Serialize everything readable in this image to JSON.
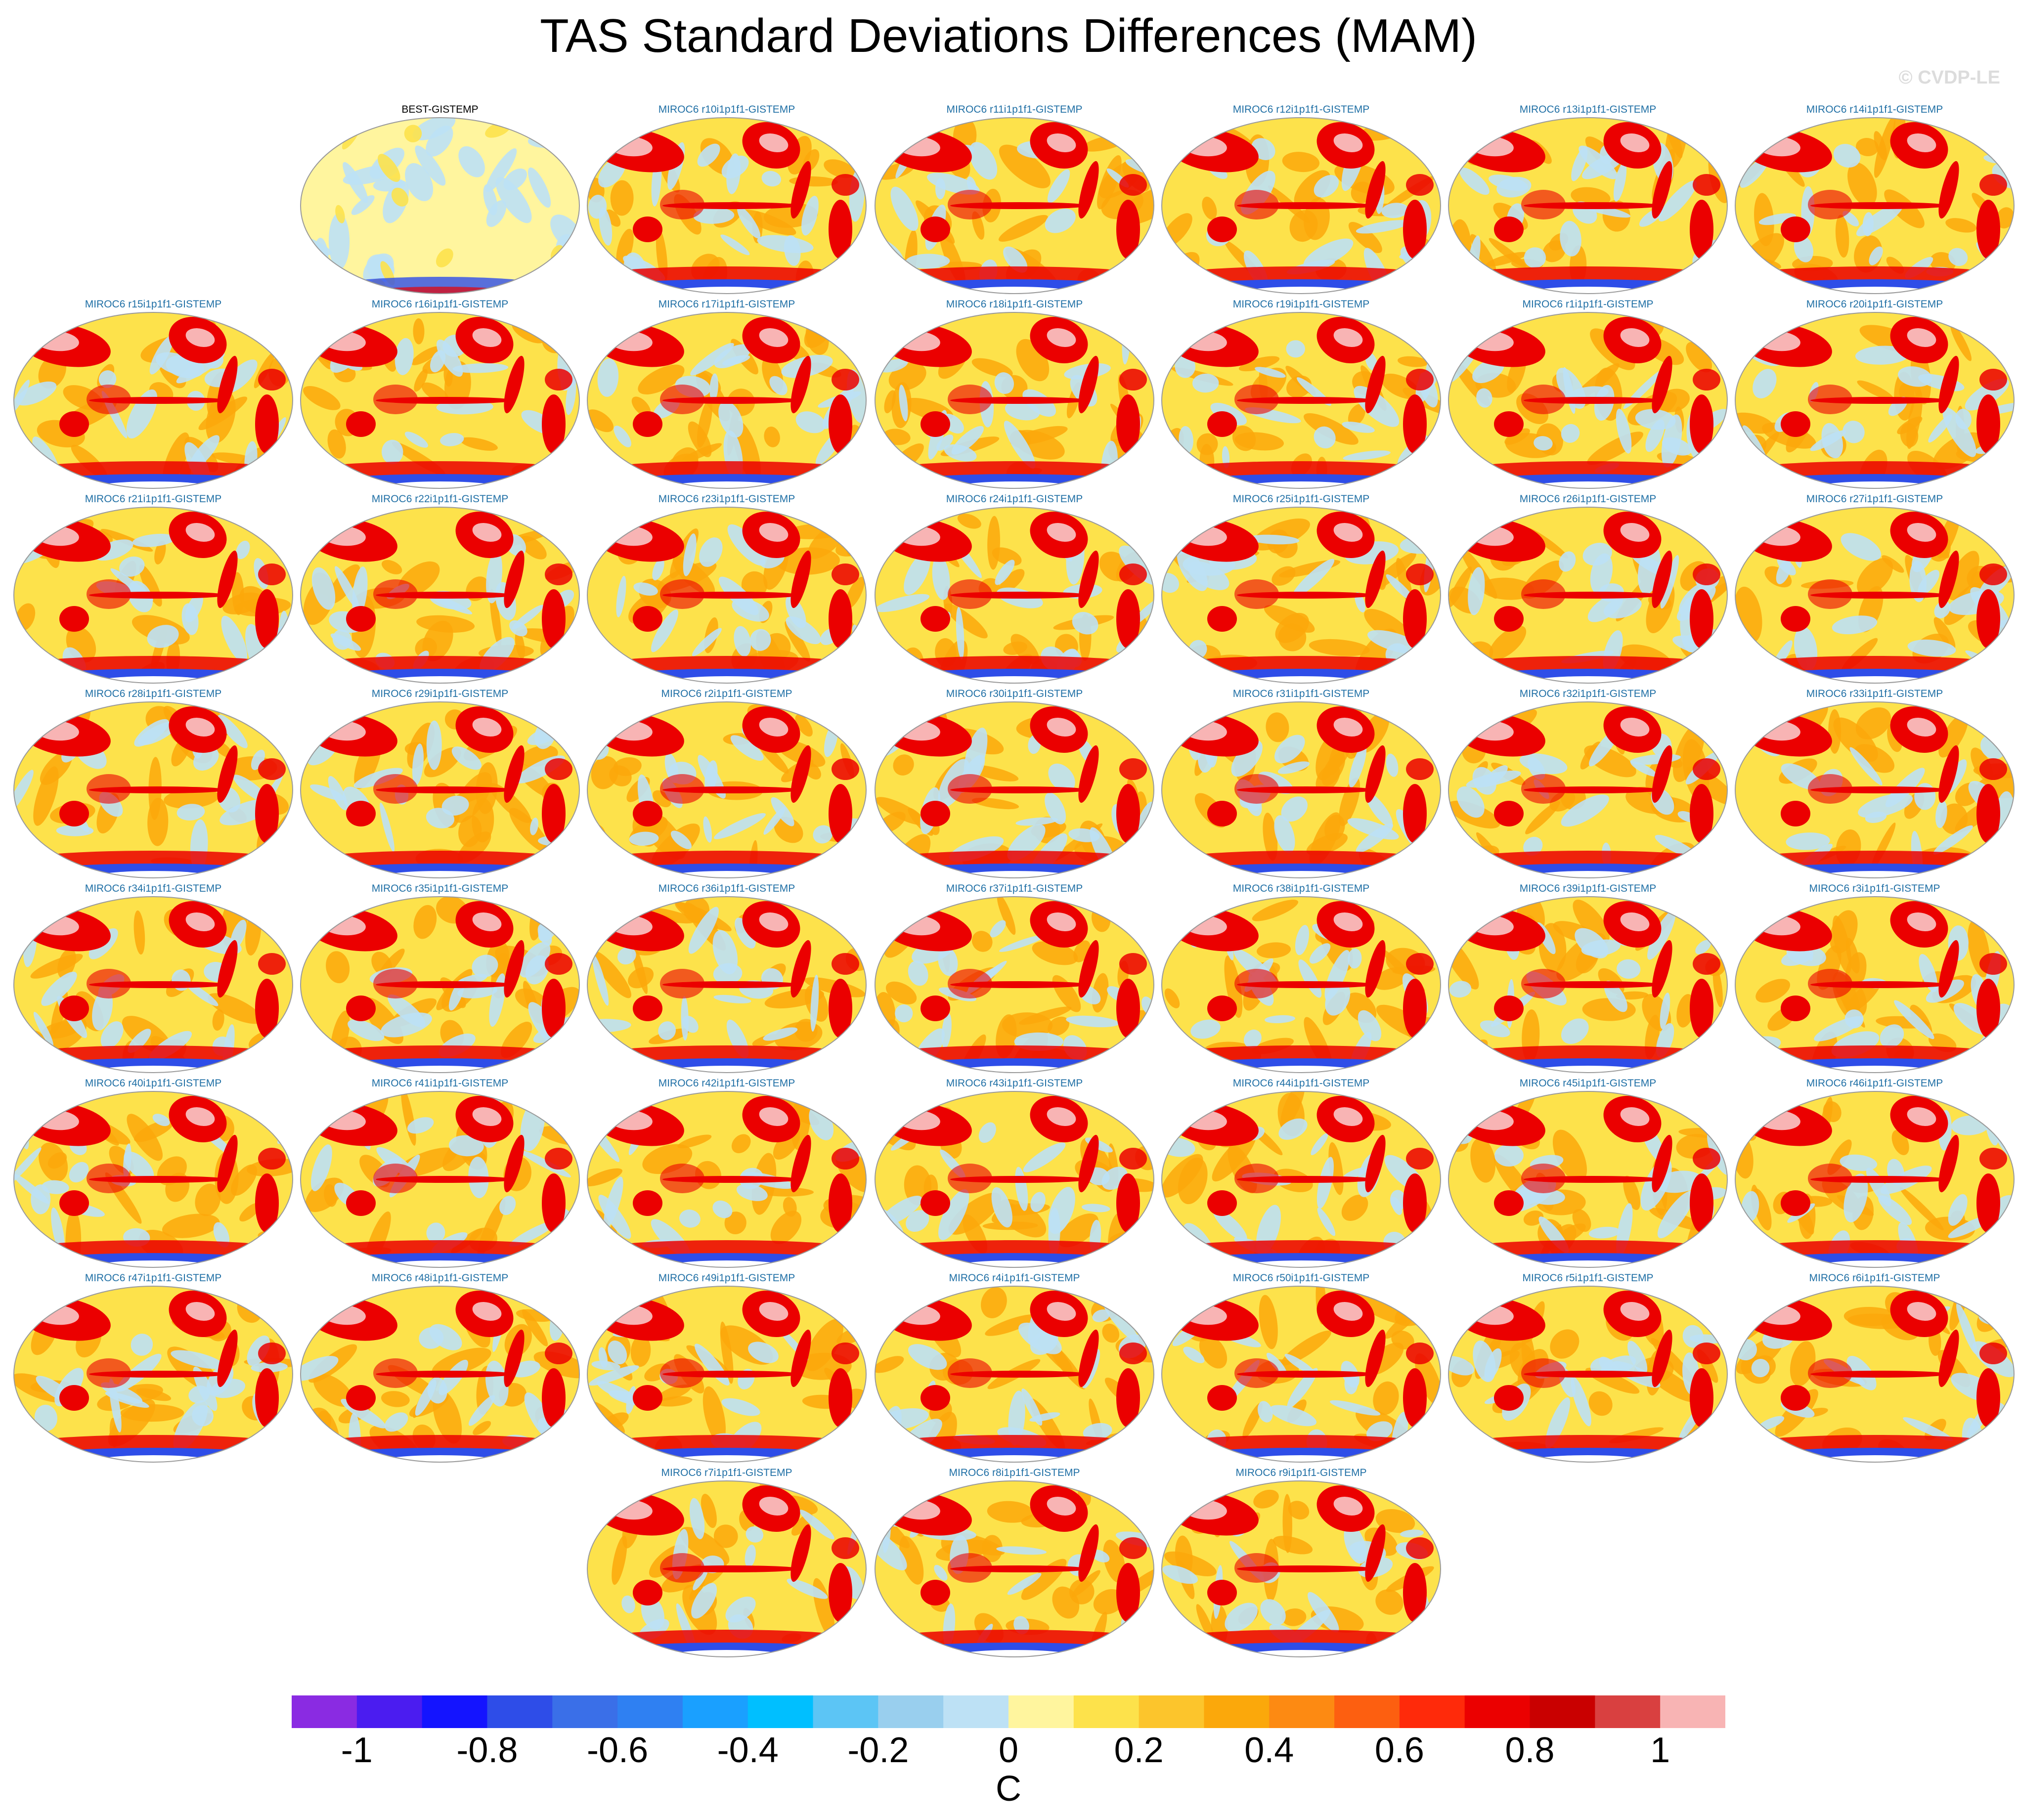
{
  "title": "TAS Standard Deviations Differences (MAM)",
  "watermark": "© CVDP-LE",
  "panels": [
    {
      "label": "BEST-GISTEMP",
      "type": "obs"
    },
    {
      "label": "MIROC6 r10i1p1f1-GISTEMP",
      "type": "model"
    },
    {
      "label": "MIROC6 r11i1p1f1-GISTEMP",
      "type": "model"
    },
    {
      "label": "MIROC6 r12i1p1f1-GISTEMP",
      "type": "model"
    },
    {
      "label": "MIROC6 r13i1p1f1-GISTEMP",
      "type": "model"
    },
    {
      "label": "MIROC6 r14i1p1f1-GISTEMP",
      "type": "model"
    },
    {
      "label": "MIROC6 r15i1p1f1-GISTEMP",
      "type": "model"
    },
    {
      "label": "MIROC6 r16i1p1f1-GISTEMP",
      "type": "model"
    },
    {
      "label": "MIROC6 r17i1p1f1-GISTEMP",
      "type": "model"
    },
    {
      "label": "MIROC6 r18i1p1f1-GISTEMP",
      "type": "model"
    },
    {
      "label": "MIROC6 r19i1p1f1-GISTEMP",
      "type": "model"
    },
    {
      "label": "MIROC6 r1i1p1f1-GISTEMP",
      "type": "model"
    },
    {
      "label": "MIROC6 r20i1p1f1-GISTEMP",
      "type": "model"
    },
    {
      "label": "MIROC6 r21i1p1f1-GISTEMP",
      "type": "model"
    },
    {
      "label": "MIROC6 r22i1p1f1-GISTEMP",
      "type": "model"
    },
    {
      "label": "MIROC6 r23i1p1f1-GISTEMP",
      "type": "model"
    },
    {
      "label": "MIROC6 r24i1p1f1-GISTEMP",
      "type": "model"
    },
    {
      "label": "MIROC6 r25i1p1f1-GISTEMP",
      "type": "model"
    },
    {
      "label": "MIROC6 r26i1p1f1-GISTEMP",
      "type": "model"
    },
    {
      "label": "MIROC6 r27i1p1f1-GISTEMP",
      "type": "model"
    },
    {
      "label": "MIROC6 r28i1p1f1-GISTEMP",
      "type": "model"
    },
    {
      "label": "MIROC6 r29i1p1f1-GISTEMP",
      "type": "model"
    },
    {
      "label": "MIROC6 r2i1p1f1-GISTEMP",
      "type": "model"
    },
    {
      "label": "MIROC6 r30i1p1f1-GISTEMP",
      "type": "model"
    },
    {
      "label": "MIROC6 r31i1p1f1-GISTEMP",
      "type": "model"
    },
    {
      "label": "MIROC6 r32i1p1f1-GISTEMP",
      "type": "model"
    },
    {
      "label": "MIROC6 r33i1p1f1-GISTEMP",
      "type": "model"
    },
    {
      "label": "MIROC6 r34i1p1f1-GISTEMP",
      "type": "model"
    },
    {
      "label": "MIROC6 r35i1p1f1-GISTEMP",
      "type": "model"
    },
    {
      "label": "MIROC6 r36i1p1f1-GISTEMP",
      "type": "model"
    },
    {
      "label": "MIROC6 r37i1p1f1-GISTEMP",
      "type": "model"
    },
    {
      "label": "MIROC6 r38i1p1f1-GISTEMP",
      "type": "model"
    },
    {
      "label": "MIROC6 r39i1p1f1-GISTEMP",
      "type": "model"
    },
    {
      "label": "MIROC6 r3i1p1f1-GISTEMP",
      "type": "model"
    },
    {
      "label": "MIROC6 r40i1p1f1-GISTEMP",
      "type": "model"
    },
    {
      "label": "MIROC6 r41i1p1f1-GISTEMP",
      "type": "model"
    },
    {
      "label": "MIROC6 r42i1p1f1-GISTEMP",
      "type": "model"
    },
    {
      "label": "MIROC6 r43i1p1f1-GISTEMP",
      "type": "model"
    },
    {
      "label": "MIROC6 r44i1p1f1-GISTEMP",
      "type": "model"
    },
    {
      "label": "MIROC6 r45i1p1f1-GISTEMP",
      "type": "model"
    },
    {
      "label": "MIROC6 r46i1p1f1-GISTEMP",
      "type": "model"
    },
    {
      "label": "MIROC6 r47i1p1f1-GISTEMP",
      "type": "model"
    },
    {
      "label": "MIROC6 r48i1p1f1-GISTEMP",
      "type": "model"
    },
    {
      "label": "MIROC6 r49i1p1f1-GISTEMP",
      "type": "model"
    },
    {
      "label": "MIROC6 r4i1p1f1-GISTEMP",
      "type": "model"
    },
    {
      "label": "MIROC6 r50i1p1f1-GISTEMP",
      "type": "model"
    },
    {
      "label": "MIROC6 r5i1p1f1-GISTEMP",
      "type": "model"
    },
    {
      "label": "MIROC6 r6i1p1f1-GISTEMP",
      "type": "model"
    },
    {
      "label": "MIROC6 r7i1p1f1-GISTEMP",
      "type": "model"
    },
    {
      "label": "MIROC6 r8i1p1f1-GISTEMP",
      "type": "model"
    },
    {
      "label": "MIROC6 r9i1p1f1-GISTEMP",
      "type": "model"
    }
  ],
  "colorbar": {
    "colors": [
      "#8a2be2",
      "#4b1cf0",
      "#1414ff",
      "#2e4de8",
      "#3a6fe8",
      "#2f80f2",
      "#1aa0ff",
      "#00bfff",
      "#5cc5f5",
      "#99cfee",
      "#bde1f5",
      "#fff59e",
      "#fde24b",
      "#fcc52c",
      "#fba80b",
      "#fd8a12",
      "#fd5f10",
      "#ff2a0a",
      "#eb0000",
      "#c90000",
      "#d94040",
      "#f8b4b4"
    ],
    "tick_labels": [
      "-1",
      "-0.8",
      "-0.6",
      "-0.4",
      "-0.2",
      "0",
      "0.2",
      "0.4",
      "0.6",
      "0.8",
      "1"
    ],
    "units": "C"
  },
  "map_colors": {
    "ocean_base": "#fde24b",
    "warm": "#fba80b",
    "red": "#eb0000",
    "pink": "#f8b4b4",
    "cool": "#bde1f5",
    "blue": "#2e4de8",
    "obs_base": "#fff59e",
    "coast": "#9a9a9a"
  }
}
